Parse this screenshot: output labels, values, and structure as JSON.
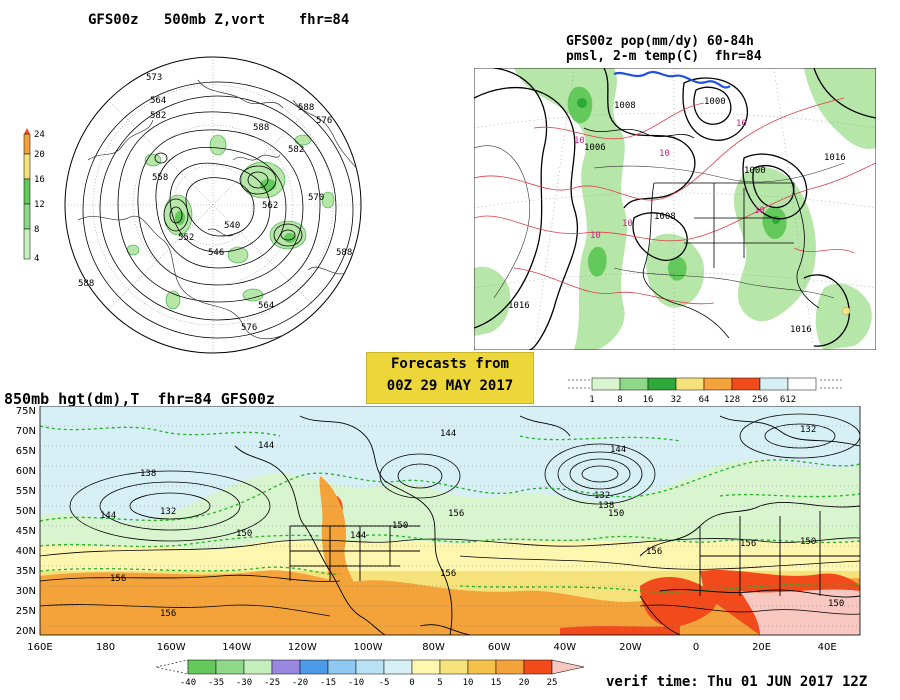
{
  "panels": {
    "top_left": {
      "title": "GFS00z   500mb Z,vort    fhr=84",
      "colorbar_ticks": [
        "24",
        "20",
        "16",
        "12",
        "8",
        "4"
      ],
      "contour_labels": [
        "573",
        "564",
        "582",
        "588",
        "576",
        "588",
        "558",
        "540",
        "562",
        "552",
        "564",
        "576",
        "588",
        "546",
        "588",
        "582",
        "570"
      ]
    },
    "top_right": {
      "title_line1": "GFS00z pop(mm/dy) 60-84h",
      "title_line2": "pmsl, 2-m temp(C)  fhr=84",
      "colorbar_ticks": [
        "1",
        "8",
        "16",
        "32",
        "64",
        "128",
        "256",
        "612"
      ],
      "isobar_labels": [
        "1008",
        "1006",
        "1000",
        "1008",
        "1016",
        "1016",
        "1016",
        "1000"
      ],
      "temp_labels": [
        "10",
        "10",
        "10",
        "10",
        "10",
        "10"
      ]
    },
    "bottom": {
      "title": "850mb hgt(dm),T  fhr=84 GFS00z",
      "lat_labels": [
        "75N",
        "70N",
        "65N",
        "60N",
        "55N",
        "50N",
        "45N",
        "40N",
        "35N",
        "30N",
        "25N",
        "20N"
      ],
      "lon_labels": [
        "160E",
        "180",
        "160W",
        "140W",
        "120W",
        "100W",
        "80W",
        "60W",
        "40W",
        "20W",
        "0",
        "20E",
        "40E"
      ],
      "contour_labels": [
        "144",
        "144",
        "138",
        "132",
        "144",
        "150",
        "156",
        "156",
        "144",
        "150",
        "156",
        "132",
        "138",
        "144",
        "150",
        "156",
        "132",
        "150",
        "156",
        "156",
        "150"
      ],
      "colorbar_ticks": [
        "-40",
        "-35",
        "-30",
        "-25",
        "-20",
        "-15",
        "-10",
        "-5",
        "0",
        "5",
        "10",
        "15",
        "20",
        "25"
      ]
    }
  },
  "forecast_box": {
    "line1": "Forecasts from",
    "line2": "00Z 29 MAY 2017"
  },
  "verif_time": "verif time: Thu 01 JUN 2017 12Z",
  "colors": {
    "green_light": "#b6e6a8",
    "green_mid": "#63c95a",
    "green_dark": "#2ea83a",
    "yellow_pale": "#fff7b0",
    "yellow": "#f6e27a",
    "orange": "#f4a23a",
    "red": "#f24a1a",
    "pale_blue": "#d6f0f6",
    "purple": "#9a88e0",
    "blue": "#4b9be8",
    "temp_dash_green": "#22b422",
    "isotherm_red": "#e0404a"
  }
}
